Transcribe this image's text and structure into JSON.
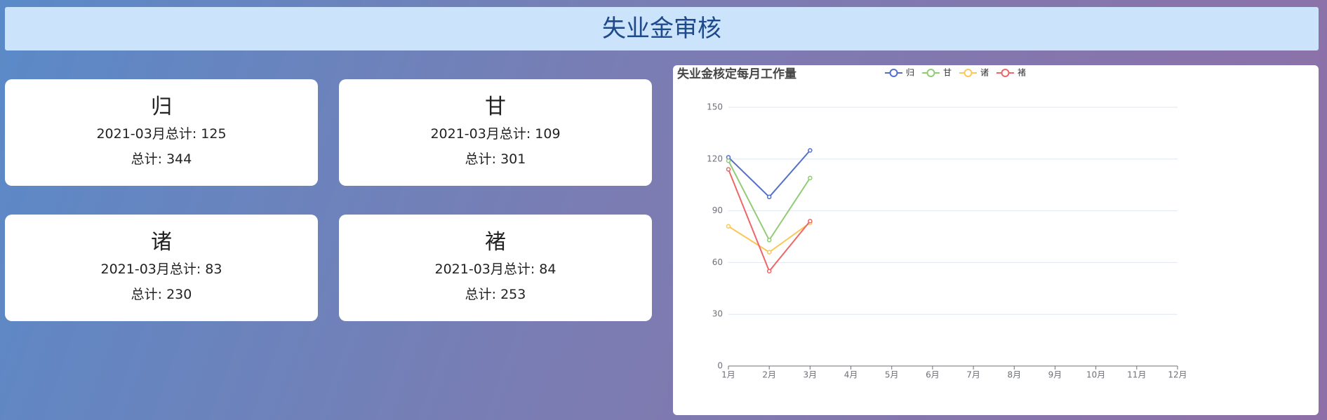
{
  "header": {
    "title": "失业金审核"
  },
  "cards": [
    {
      "name": "归",
      "month_total": "2021-03月总计: 125",
      "total": "总计: 344"
    },
    {
      "name": "甘",
      "month_total": "2021-03月总计: 109",
      "total": "总计: 301"
    },
    {
      "name": "诸",
      "month_total": "2021-03月总计: 83",
      "total": "总计: 230"
    },
    {
      "name": "褚",
      "month_total": "2021-03月总计: 84",
      "total": "总计: 253"
    }
  ],
  "chart_data": {
    "type": "line",
    "title": "失业金核定每月工作量",
    "categories": [
      "1月",
      "2月",
      "3月",
      "4月",
      "5月",
      "6月",
      "7月",
      "8月",
      "9月",
      "10月",
      "11月",
      "12月"
    ],
    "series": [
      {
        "name": "归",
        "color": "#5470c6",
        "values": [
          121,
          98,
          125,
          null,
          null,
          null,
          null,
          null,
          null,
          null,
          null,
          null
        ]
      },
      {
        "name": "甘",
        "color": "#91cc75",
        "values": [
          119,
          73,
          109,
          null,
          null,
          null,
          null,
          null,
          null,
          null,
          null,
          null
        ]
      },
      {
        "name": "诸",
        "color": "#fac858",
        "values": [
          81,
          66,
          83,
          null,
          null,
          null,
          null,
          null,
          null,
          null,
          null,
          null
        ]
      },
      {
        "name": "褚",
        "color": "#ee6666",
        "values": [
          114,
          55,
          84,
          null,
          null,
          null,
          null,
          null,
          null,
          null,
          null,
          null
        ]
      }
    ],
    "ylim": [
      0,
      150
    ],
    "yticks": [
      0,
      30,
      60,
      90,
      120,
      150
    ],
    "grid": true,
    "legend": "top"
  }
}
